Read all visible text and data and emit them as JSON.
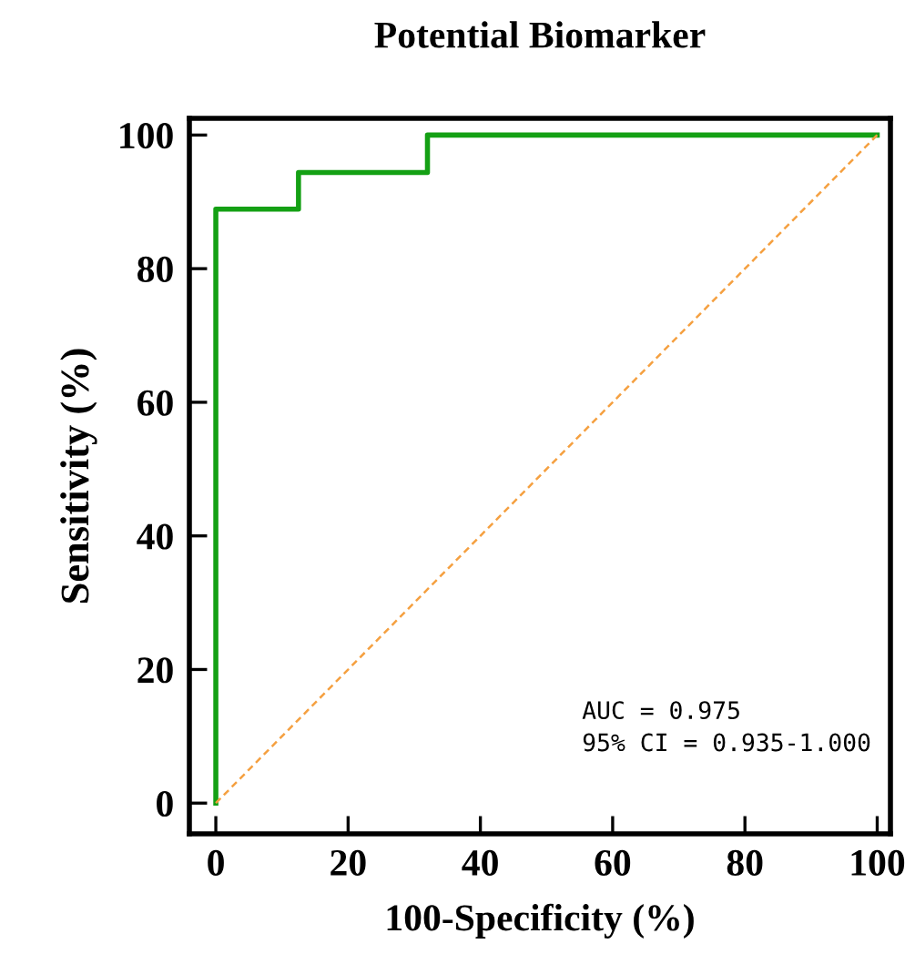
{
  "chart_data": {
    "type": "step",
    "title": "Potential Biomarker",
    "xlabel": "100-Specificity (%)",
    "ylabel": "Sensitivity (%)",
    "series": [
      {
        "color": "#14a014",
        "x": [
          0,
          0,
          12.5,
          12.5,
          32,
          32,
          100
        ],
        "values": [
          0,
          88.9,
          88.9,
          94.4,
          94.4,
          100,
          100
        ],
        "line_style": "solid"
      },
      {
        "type": "line",
        "color": "#f5a040",
        "x": [
          0,
          100
        ],
        "values": [
          0,
          100
        ],
        "line_style": "dashed"
      }
    ],
    "xlim": [
      -4,
      102
    ],
    "ylim": [
      -4.6,
      102.5
    ],
    "xticks": [
      0,
      20,
      40,
      60,
      80,
      100
    ],
    "yticks": [
      0,
      20,
      40,
      60,
      80,
      100
    ],
    "grid": false,
    "legend": false,
    "marker": "none",
    "annotations": [
      "AUC = 0.975",
      "95% CI = 0.935-1.000"
    ]
  }
}
